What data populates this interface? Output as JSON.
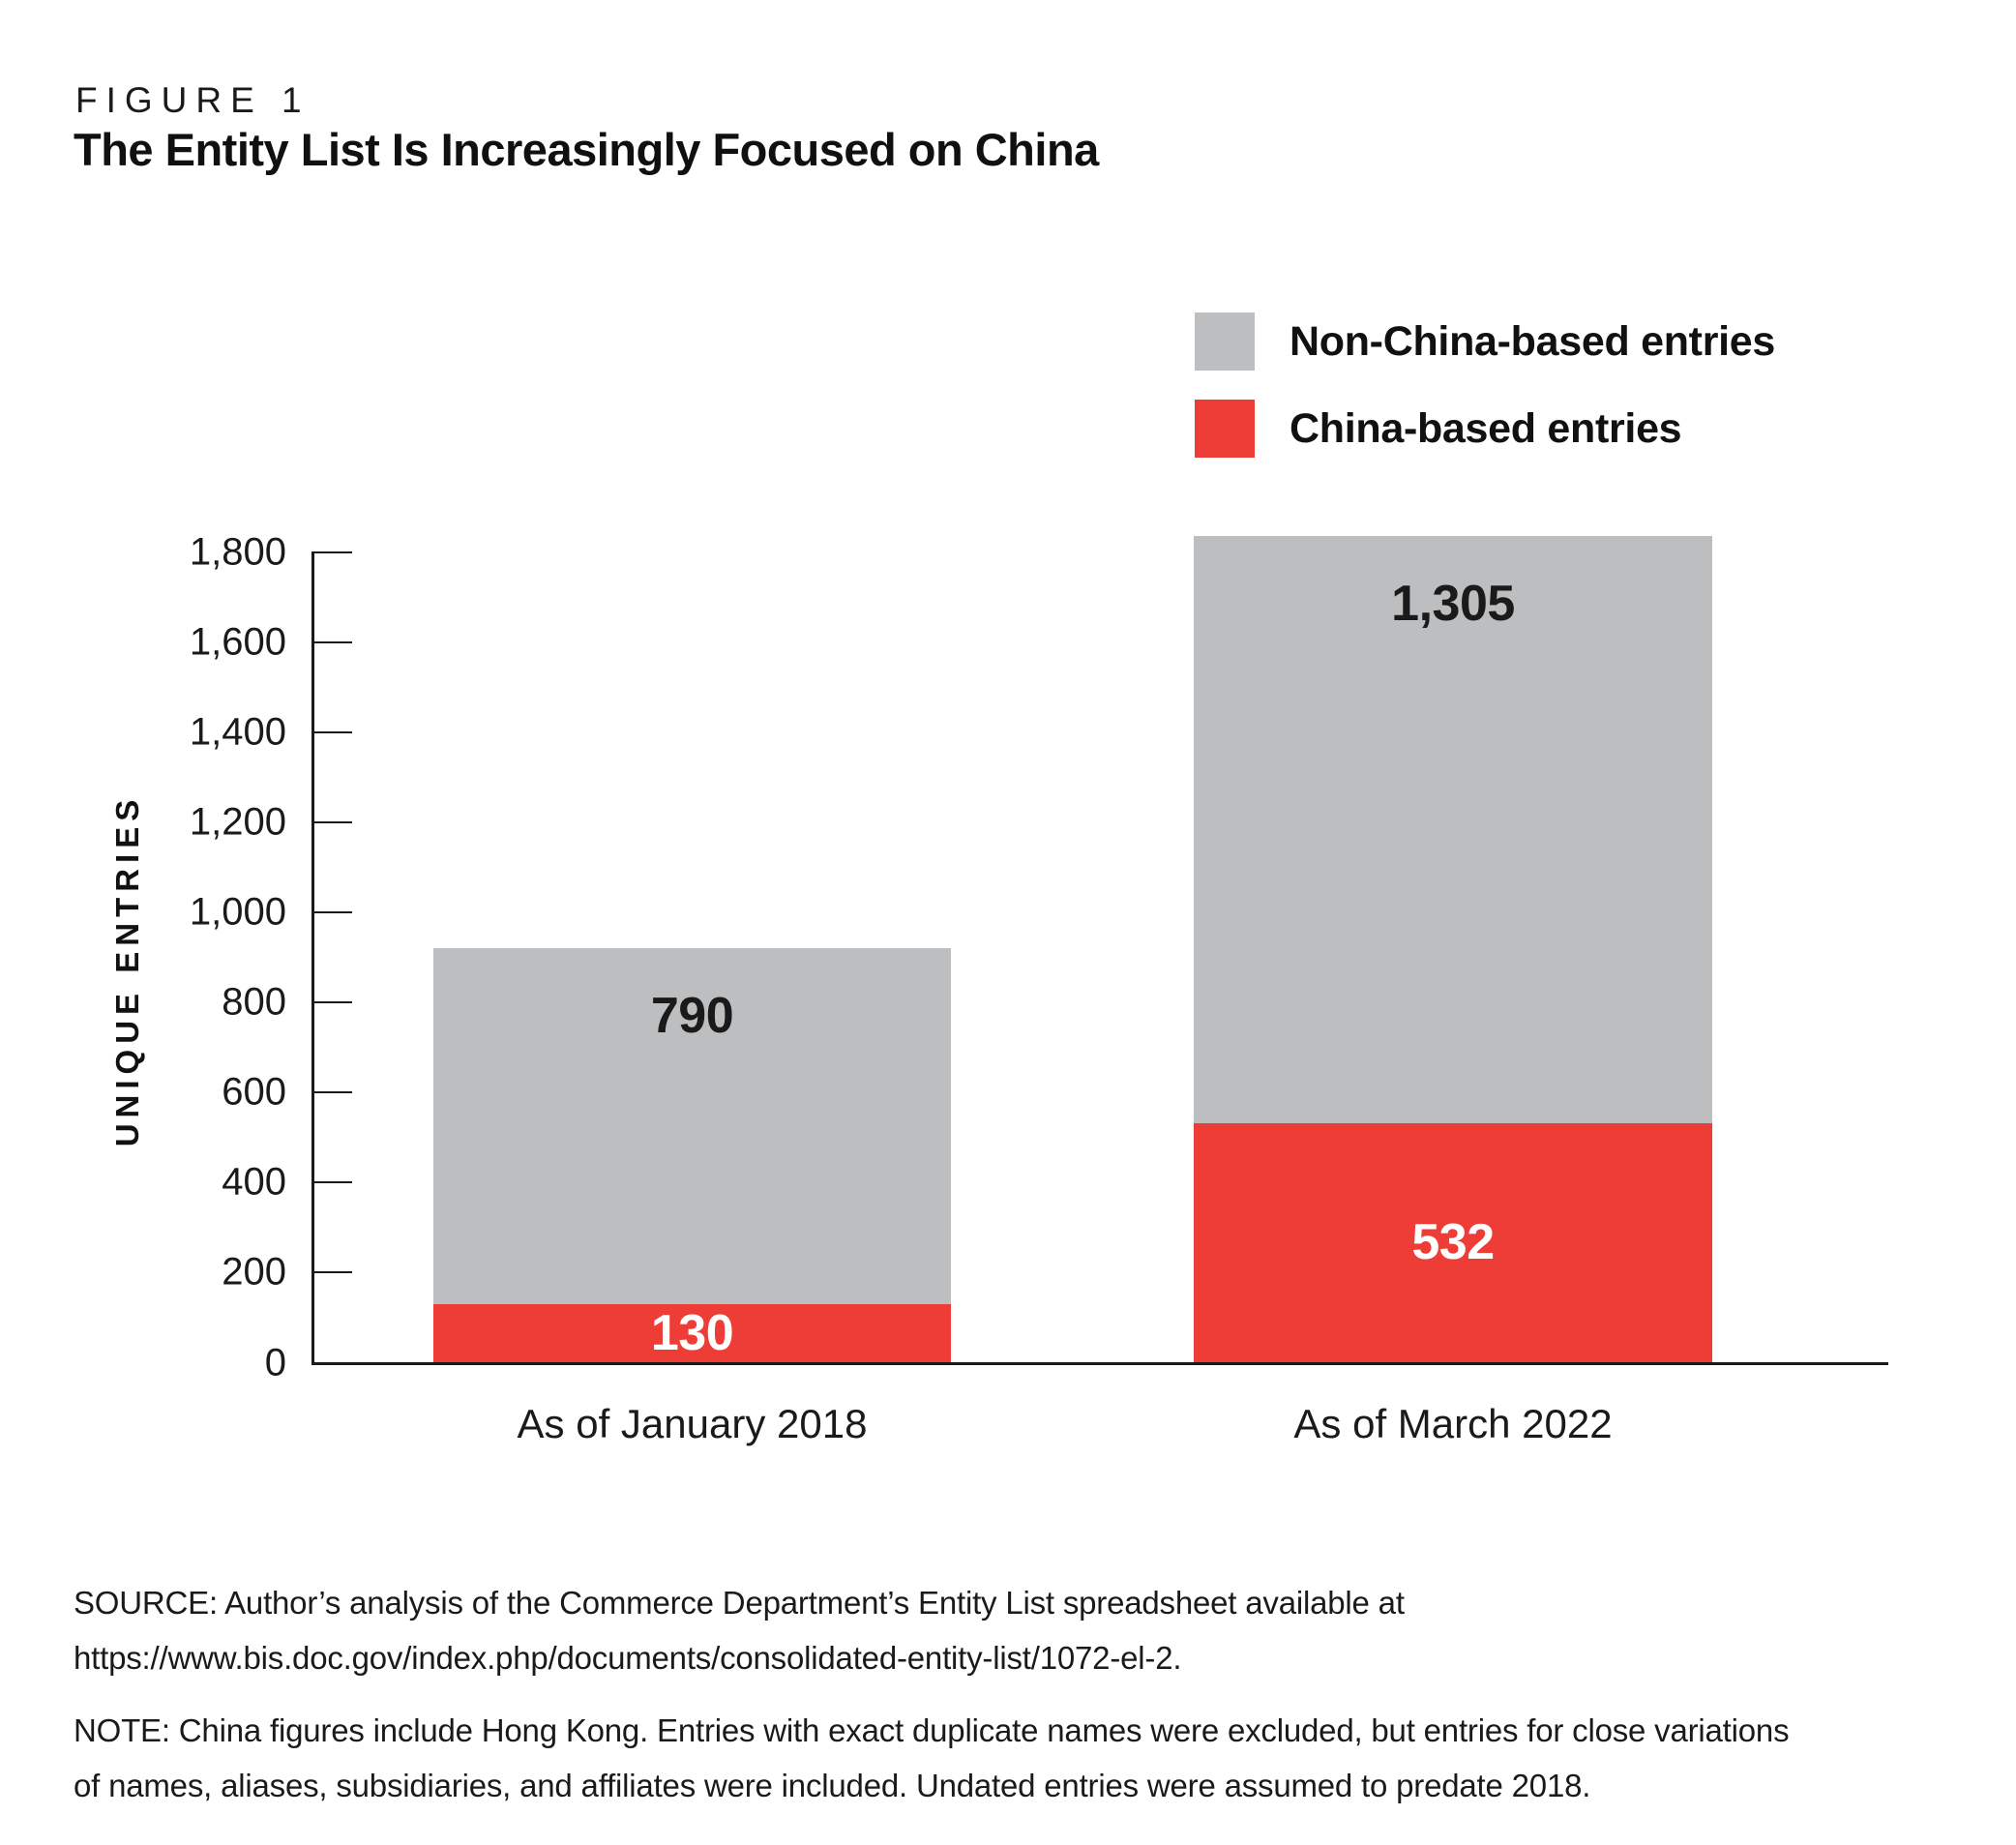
{
  "figure": {
    "label": "FIGURE 1",
    "title": "The Entity List Is Increasingly Focused on China"
  },
  "legend": {
    "items": [
      {
        "label": "Non-China-based entries",
        "color": "#bcbec0"
      },
      {
        "label": "China-based entries",
        "color": "#ee3d36"
      }
    ]
  },
  "chart_data": {
    "type": "bar",
    "stacked": true,
    "title": "The Entity List Is Increasingly Focused on China",
    "categories": [
      "As of January 2018",
      "As of March 2022"
    ],
    "series": [
      {
        "name": "China-based entries",
        "color": "#ee3d36",
        "values": [
          130,
          532
        ],
        "value_labels": [
          "130",
          "532"
        ],
        "label_color": "#ffffff",
        "label_placement": "center"
      },
      {
        "name": "Non-China-based entries",
        "color": "#bcbec0",
        "values": [
          790,
          1305
        ],
        "value_labels": [
          "790",
          "1,305"
        ],
        "label_color": "#1a1a1a",
        "label_placement": "top"
      }
    ],
    "totals": [
      920,
      1837
    ],
    "ylabel": "UNIQUE ENTRIES",
    "ylim": [
      0,
      1840
    ],
    "yticks": [
      0,
      200,
      400,
      600,
      800,
      1000,
      1200,
      1400,
      1600,
      1800
    ],
    "ytick_labels": [
      "0",
      "200",
      "400",
      "600",
      "800",
      "1,000",
      "1,200",
      "1,400",
      "1,600",
      "1,800"
    ],
    "grid": false,
    "legend_position": "top-right"
  },
  "footer": {
    "source_lines": [
      "SOURCE: Author’s analysis of the Commerce Department’s Entity List spreadsheet available at",
      "https://www.bis.doc.gov/index.php/documents/consolidated-entity-list/1072-el-2."
    ],
    "note_lines": [
      "NOTE: China figures include Hong Kong. Entries with exact duplicate names were excluded, but entries for close variations",
      "of names, aliases, subsidiaries, and affiliates were included. Undated entries were assumed to predate 2018."
    ]
  }
}
